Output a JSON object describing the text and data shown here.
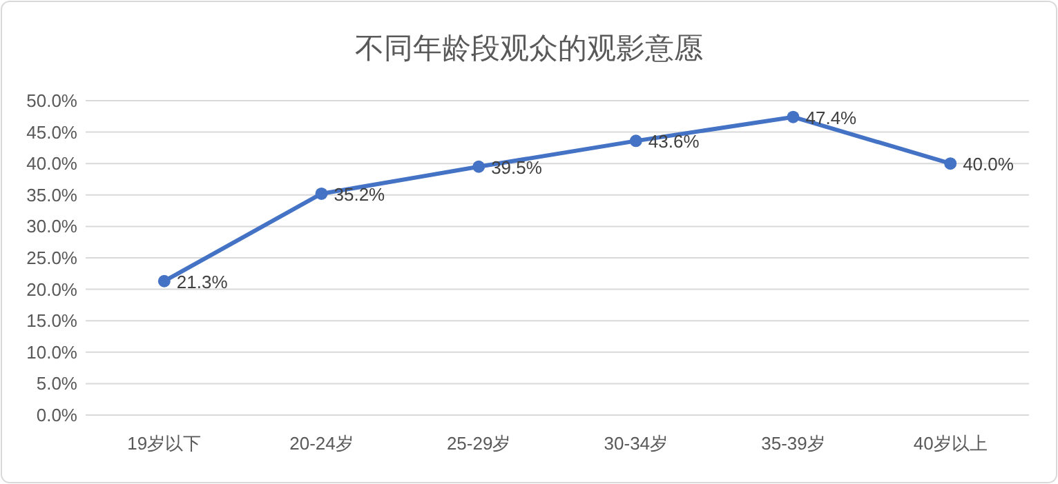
{
  "chart_data": {
    "type": "line",
    "title": "不同年龄段观众的观影意愿",
    "categories": [
      "19岁以下",
      "20-24岁",
      "25-29岁",
      "30-34岁",
      "35-39岁",
      "40岁以上"
    ],
    "series": [
      {
        "color": "#4472c4",
        "values": [
          21.3,
          35.2,
          39.5,
          43.6,
          47.4,
          40.0
        ],
        "value_labels": [
          "21.3%",
          "35.2%",
          "39.5%",
          "43.6%",
          "47.4%",
          "40.0%"
        ]
      }
    ],
    "ylim": [
      0,
      50
    ],
    "yticks": [
      {
        "value": 0,
        "label": "0.0%"
      },
      {
        "value": 5,
        "label": "5.0%"
      },
      {
        "value": 10,
        "label": "10.0%"
      },
      {
        "value": 15,
        "label": "15.0%"
      },
      {
        "value": 20,
        "label": "20.0%"
      },
      {
        "value": 25,
        "label": "25.0%"
      },
      {
        "value": 30,
        "label": "30.0%"
      },
      {
        "value": 35,
        "label": "35.0%"
      },
      {
        "value": 40,
        "label": "40.0%"
      },
      {
        "value": 45,
        "label": "45.0%"
      },
      {
        "value": 50,
        "label": "50.0%"
      }
    ],
    "grid": "y",
    "marker": "circle",
    "line_style": "solid"
  }
}
